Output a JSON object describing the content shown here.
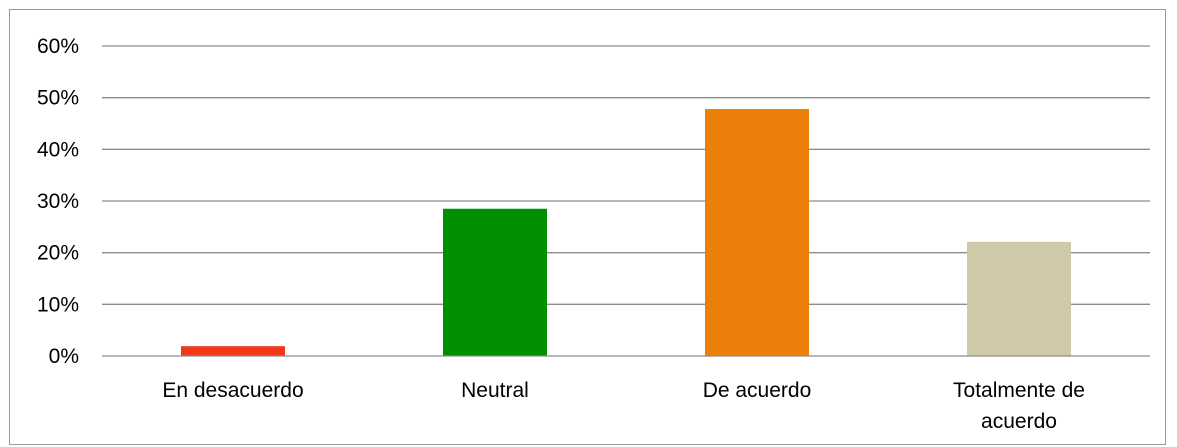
{
  "chart_data": {
    "type": "bar",
    "categories": [
      [
        "En desacuerdo"
      ],
      [
        "Neutral"
      ],
      [
        "De acuerdo"
      ],
      [
        "Totalmente de",
        "acuerdo"
      ]
    ],
    "values": [
      1.9,
      28.5,
      47.8,
      22.1
    ],
    "colors": [
      "#f0381a",
      "#008f00",
      "#ec7f09",
      "#cfc9a8"
    ],
    "yticks": [
      "0%",
      "10%",
      "20%",
      "30%",
      "40%",
      "50%",
      "60%"
    ],
    "ylim": [
      0,
      60
    ],
    "grid": true,
    "legend": "none",
    "title": "",
    "xlabel": "",
    "ylabel": ""
  }
}
